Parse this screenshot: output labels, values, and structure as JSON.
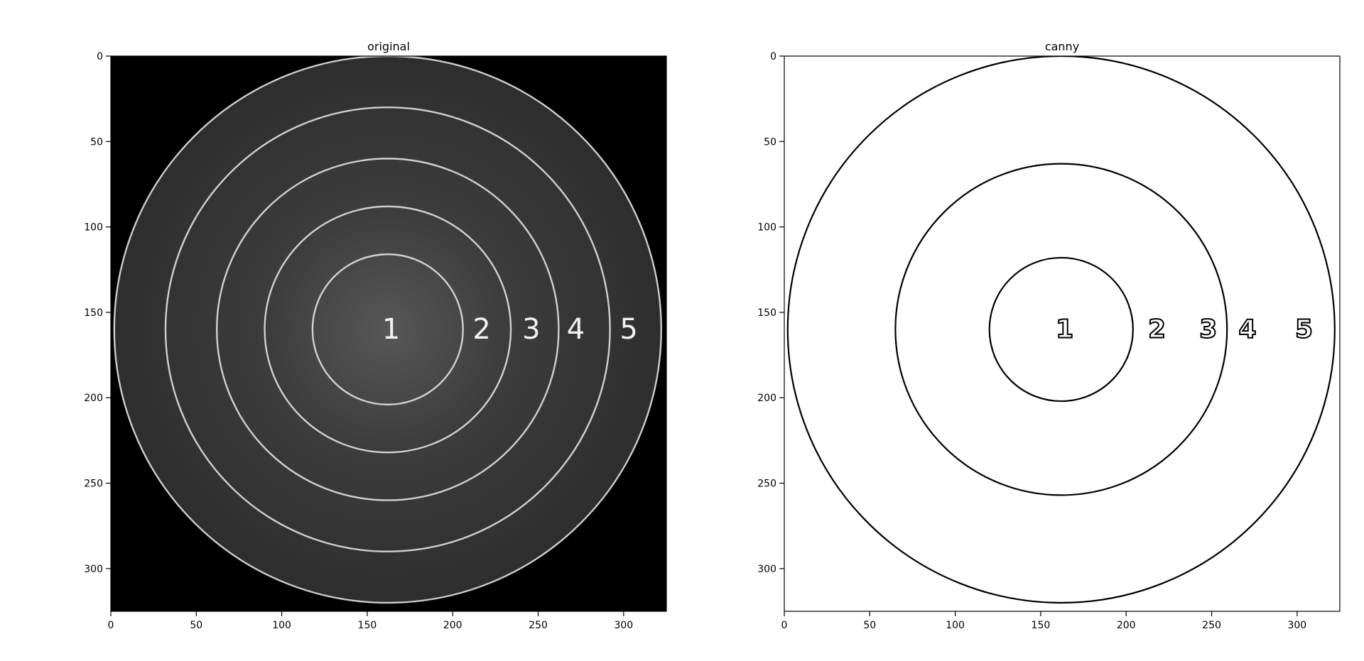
{
  "chart_data": [
    {
      "type": "image",
      "title": "original",
      "xlabel": "",
      "ylabel": "",
      "xlim": [
        0,
        325
      ],
      "ylim": [
        325,
        0
      ],
      "xticks": [
        0,
        50,
        100,
        150,
        200,
        250,
        300
      ],
      "yticks": [
        0,
        50,
        100,
        150,
        200,
        250,
        300
      ],
      "background": "#000000",
      "disc": {
        "cx": 162,
        "cy": 160,
        "r": 160,
        "center_color": "#575757",
        "edge_color": "#2e2e2e"
      },
      "rings": [
        {
          "cx": 162,
          "cy": 160,
          "r": 44
        },
        {
          "cx": 162,
          "cy": 160,
          "r": 72
        },
        {
          "cx": 162,
          "cy": 160,
          "r": 100
        },
        {
          "cx": 162,
          "cy": 160,
          "r": 130
        },
        {
          "cx": 162,
          "cy": 160,
          "r": 160
        }
      ],
      "ring_color": "#e0e0e0",
      "labels": [
        {
          "text": "1",
          "x": 164,
          "y": 160
        },
        {
          "text": "2",
          "x": 217,
          "y": 160
        },
        {
          "text": "3",
          "x": 246,
          "y": 160
        },
        {
          "text": "4",
          "x": 272,
          "y": 160
        },
        {
          "text": "5",
          "x": 303,
          "y": 160
        }
      ]
    },
    {
      "type": "image",
      "title": "canny",
      "xlabel": "",
      "ylabel": "",
      "xlim": [
        0,
        325
      ],
      "ylim": [
        325,
        0
      ],
      "xticks": [
        0,
        50,
        100,
        150,
        200,
        250,
        300
      ],
      "yticks": [
        0,
        50,
        100,
        150,
        200,
        250,
        300
      ],
      "background": "#ffffff",
      "rings": [
        {
          "cx": 162,
          "cy": 160,
          "r": 42
        },
        {
          "cx": 162,
          "cy": 160,
          "r": 97
        },
        {
          "cx": 162,
          "cy": 160,
          "r": 160
        }
      ],
      "ring_color": "#000000",
      "labels": [
        {
          "text": "1",
          "x": 164,
          "y": 160
        },
        {
          "text": "2",
          "x": 218,
          "y": 160
        },
        {
          "text": "3",
          "x": 248,
          "y": 160
        },
        {
          "text": "4",
          "x": 271,
          "y": 160
        },
        {
          "text": "5",
          "x": 304,
          "y": 160
        }
      ]
    }
  ]
}
